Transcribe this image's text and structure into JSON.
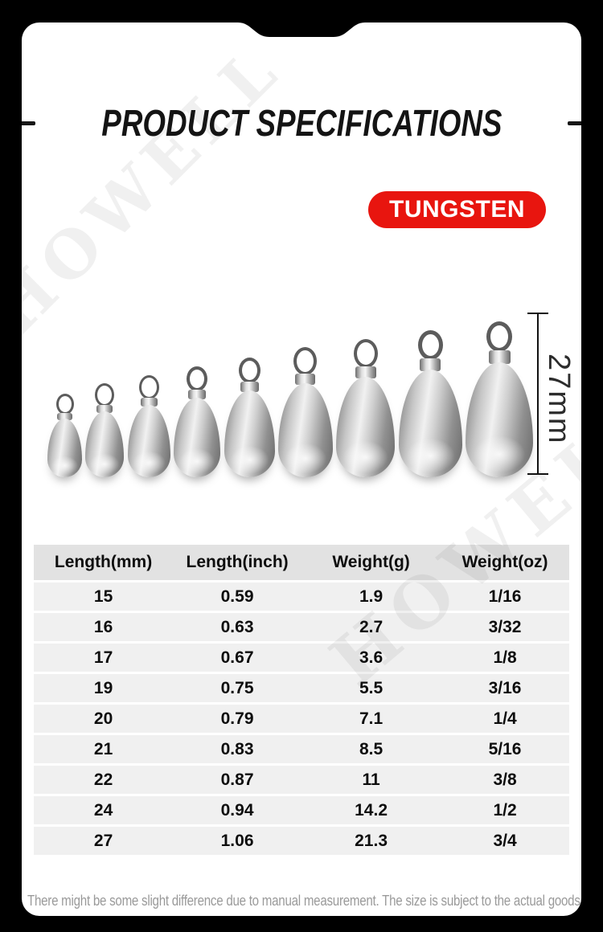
{
  "header": {
    "title": "PRODUCT SPECIFICATIONS",
    "badge_label": "TUNGSTEN"
  },
  "hero": {
    "measurement_label": "27mm",
    "weights_count": 9
  },
  "watermark": {
    "text": "HOWELL"
  },
  "colors": {
    "accent_red": "#e8150f",
    "page_background": "#000000",
    "card_background": "#ffffff",
    "table_header_bg": "#e2e2e2",
    "table_row_bg": "#f0f0f0"
  },
  "spec_table": {
    "headers": [
      "Length(mm)",
      "Length(inch)",
      "Weight(g)",
      "Weight(oz)"
    ],
    "rows": [
      [
        "15",
        "0.59",
        "1.9",
        "1/16"
      ],
      [
        "16",
        "0.63",
        "2.7",
        "3/32"
      ],
      [
        "17",
        "0.67",
        "3.6",
        "1/8"
      ],
      [
        "19",
        "0.75",
        "5.5",
        "3/16"
      ],
      [
        "20",
        "0.79",
        "7.1",
        "1/4"
      ],
      [
        "21",
        "0.83",
        "8.5",
        "5/16"
      ],
      [
        "22",
        "0.87",
        "11",
        "3/8"
      ],
      [
        "24",
        "0.94",
        "14.2",
        "1/2"
      ],
      [
        "27",
        "1.06",
        "21.3",
        "3/4"
      ]
    ]
  },
  "footer": {
    "note": "There might be some slight difference due to manual measurement. The size is subject to the actual goods."
  }
}
